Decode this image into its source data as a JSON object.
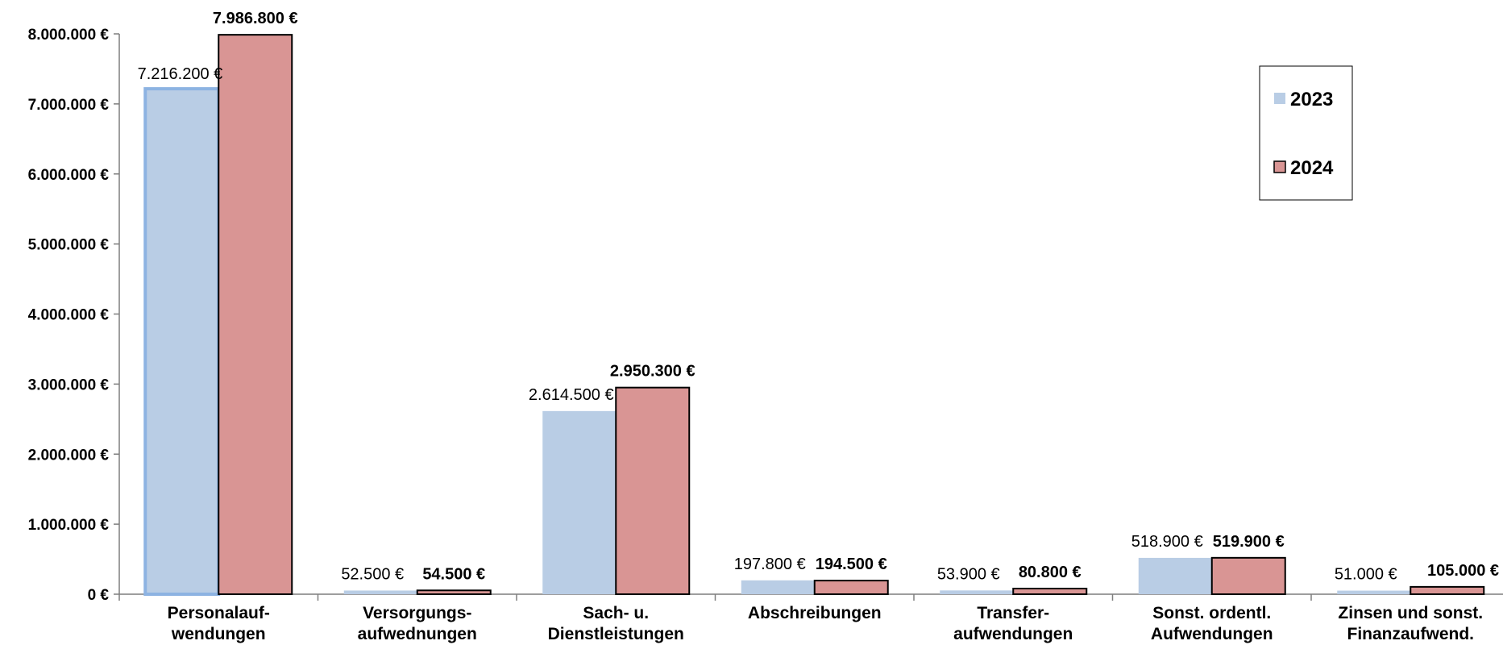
{
  "chart_data": {
    "type": "bar",
    "categories": [
      [
        "Personalauf-",
        "wendungen"
      ],
      [
        "Versorgungs-",
        "aufwednungen"
      ],
      [
        "Sach- u.",
        "Dienstleistungen"
      ],
      [
        "Abschreibungen"
      ],
      [
        "Transfer-",
        "aufwendungen"
      ],
      [
        "Sonst. ordentl.",
        "Aufwendungen"
      ],
      [
        "Zinsen und sonst.",
        "Finanzaufwend."
      ]
    ],
    "series": [
      {
        "name": "2023",
        "values": [
          7216200,
          52500,
          2614500,
          197800,
          53900,
          518900,
          51000
        ],
        "labels": [
          "7.216.200 €",
          "52.500 €",
          "2.614.500 €",
          "197.800 €",
          "53.900 €",
          "518.900 €",
          "51.000 €"
        ],
        "color": "#b9cde5"
      },
      {
        "name": "2024",
        "values": [
          7986800,
          54500,
          2950300,
          194500,
          80800,
          519900,
          105000
        ],
        "labels": [
          "7.986.800 €",
          "54.500 €",
          "2.950.300 €",
          "194.500 €",
          "80.800 €",
          "519.900 €",
          "105.000 €"
        ],
        "color": "#d99594"
      }
    ],
    "ylim": [
      0,
      8000000
    ],
    "yticks": [
      {
        "value": 0,
        "label": "0 €"
      },
      {
        "value": 1000000,
        "label": "1.000.000 €"
      },
      {
        "value": 2000000,
        "label": "2.000.000 €"
      },
      {
        "value": 3000000,
        "label": "3.000.000 €"
      },
      {
        "value": 4000000,
        "label": "4.000.000 €"
      },
      {
        "value": 5000000,
        "label": "5.000.000 €"
      },
      {
        "value": 6000000,
        "label": "6.000.000 €"
      },
      {
        "value": 7000000,
        "label": "7.000.000 €"
      },
      {
        "value": 8000000,
        "label": "8.000.000 €"
      }
    ],
    "grid": false,
    "legend_position": "top-right",
    "highlight_color": "#8db3e2",
    "outline_color": "#000000"
  }
}
